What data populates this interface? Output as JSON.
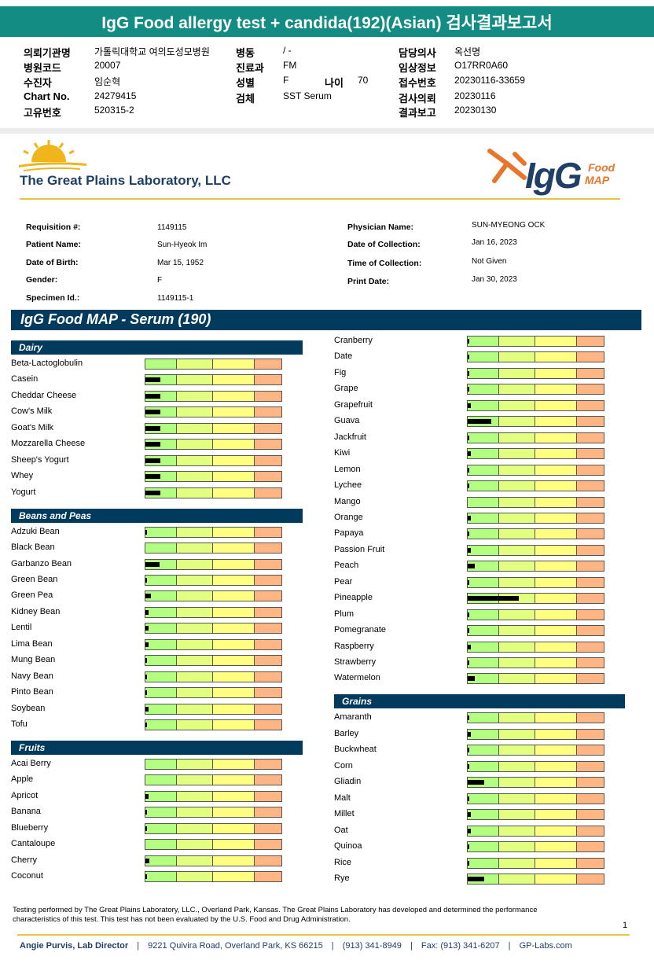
{
  "header": {
    "title": "IgG Food allergy test + candida(192)(Asian) 검사결과보고서",
    "rows": [
      [
        "의뢰기관명",
        "가톨릭대학교 여의도성모병원",
        "병동",
        "/ -",
        "담당의사",
        "옥선명"
      ],
      [
        "병원코드",
        "20007",
        "진료과",
        "FM",
        "임상정보",
        "O17RR0A60"
      ],
      [
        "수진자",
        "임순혁",
        "성별",
        "F",
        "나이",
        "70",
        "접수번호",
        "20230116-33659"
      ],
      [
        "Chart No.",
        "24279415",
        "검체",
        "SST Serum",
        "검사의뢰",
        "20230116"
      ],
      [
        "고유번호",
        "520315-2",
        "결과보고",
        "20230130"
      ]
    ]
  },
  "lab": {
    "name": "The Great Plains Laboratory, LLC",
    "brand": "IgG",
    "brand_line1": "Food",
    "brand_line2": "MAP"
  },
  "patient": {
    "left": [
      [
        "Requisition #:",
        "1149115"
      ],
      [
        "Patient Name:",
        "Sun-Hyeok Im"
      ],
      [
        "Date of Birth:",
        "Mar 15, 1952"
      ],
      [
        "Gender:",
        "F"
      ],
      [
        "Specimen Id.:",
        "1149115-1"
      ]
    ],
    "right": [
      [
        "Physician Name:",
        "SUN-MYEONG OCK"
      ],
      [
        "Date of Collection:",
        "Jan 16, 2023"
      ],
      [
        "Time of Collection:",
        "Not Given"
      ],
      [
        "Print Date:",
        "Jan 30, 2023"
      ]
    ]
  },
  "report": {
    "title": "IgG Food MAP - Serum (190)",
    "columns": [
      [
        {
          "title": "Dairy",
          "items": [
            "Beta-Lactoglobulin",
            "Casein",
            "Cheddar Cheese",
            "Cow's Milk",
            "Goat's Milk",
            "Mozzarella Cheese",
            "Sheep's Yogurt",
            "Whey",
            "Yogurt"
          ],
          "values": [
            0,
            0.11,
            0.11,
            0.11,
            0.11,
            0.11,
            0.11,
            0.11,
            0.11
          ]
        },
        {
          "title": "Beans and Peas",
          "items": [
            "Adzuki Bean",
            "Black Bean",
            "Garbanzo Bean",
            "Green Bean",
            "Green Pea",
            "Kidney Bean",
            "Lentil",
            "Lima Bean",
            "Mung Bean",
            "Navy Bean",
            "Pinto Bean",
            "Soybean",
            "Tofu"
          ],
          "values": [
            0.01,
            0,
            0.1,
            0.01,
            0.04,
            0.02,
            0.02,
            0.02,
            0.01,
            0.01,
            0.01,
            0.02,
            0.01
          ]
        },
        {
          "title": "Fruits",
          "items": [
            "Acai Berry",
            "Apple",
            "Apricot",
            "Banana",
            "Blueberry",
            "Cantaloupe",
            "Cherry",
            "Coconut"
          ],
          "values": [
            0,
            0,
            0.02,
            0.01,
            0.01,
            0,
            0.03,
            0.01
          ]
        }
      ],
      [
        {
          "items": [
            "Cranberry",
            "Date",
            "Fig",
            "Grape",
            "Grapefruit",
            "Guava",
            "Jackfruit",
            "Kiwi",
            "Lemon",
            "Lychee",
            "Mango",
            "Orange",
            "Papaya",
            "Passion Fruit",
            "Peach",
            "Pear",
            "Pineapple",
            "Plum",
            "Pomegranate",
            "Raspberry",
            "Strawberry",
            "Watermelon"
          ],
          "values": [
            0.01,
            0.01,
            0.01,
            0.01,
            0.02,
            0.17,
            0.01,
            0.02,
            0.01,
            0.01,
            0,
            0.02,
            0.01,
            0.02,
            0.05,
            0.01,
            0.37,
            0.01,
            0.01,
            0.02,
            0.01,
            0.05
          ]
        },
        {
          "title": "Grains",
          "items": [
            "Amaranth",
            "Barley",
            "Buckwheat",
            "Corn",
            "Gliadin",
            "Malt",
            "Millet",
            "Oat",
            "Quinoa",
            "Rice",
            "Rye"
          ],
          "values": [
            0.01,
            0.02,
            0.01,
            0.01,
            0.12,
            0.01,
            0.02,
            0.02,
            0.01,
            0.01,
            0.12
          ]
        }
      ]
    ]
  },
  "footer": {
    "note": "Testing performed by The Great Plains Laboratory, LLC., Overland Park, Kansas.  The Great Plains Laboratory has developed and determined the performance characteristics of this test.  This test has not been evaluated by the U.S. Food and Drug Administration.",
    "page": "1",
    "contact": [
      "Angie Purvis, Lab Director",
      "9221 Quivira Road, Overland Park, KS 66215",
      "(913) 341-8949",
      "Fax: (913) 341-6207",
      "GP-Labs.com"
    ]
  }
}
